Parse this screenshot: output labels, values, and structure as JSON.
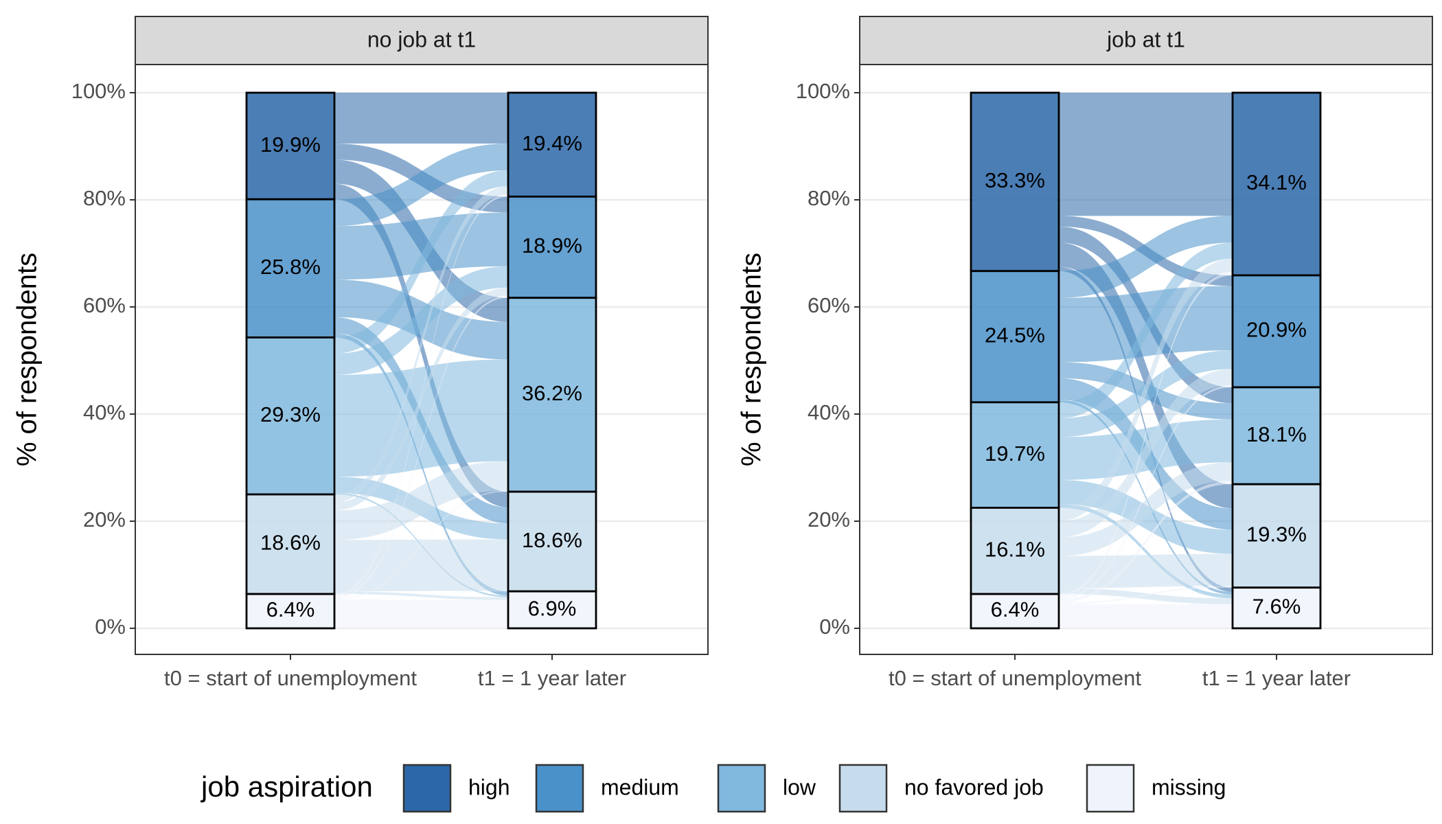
{
  "chart_data": [
    {
      "type": "alluvial",
      "title": "no job at t1",
      "ylabel": "% of respondents",
      "x": [
        "t0 = start of unemployment",
        "t1 = 1 year later"
      ],
      "strata": [
        [
          19.9,
          25.8,
          29.3,
          18.6,
          6.4
        ],
        [
          19.4,
          18.9,
          36.2,
          18.6,
          6.9
        ]
      ],
      "value_labels": [
        [
          "19.9%",
          "25.8%",
          "29.3%",
          "18.6%",
          "6.4%"
        ],
        [
          "19.4%",
          "18.9%",
          "36.2%",
          "18.6%",
          "6.9%"
        ]
      ],
      "flows": [
        [
          9.5,
          3,
          4.5,
          2.9,
          0
        ],
        [
          5,
          10,
          7,
          3,
          0.8
        ],
        [
          3,
          4,
          19,
          3,
          0.3
        ],
        [
          1.5,
          1.5,
          5.5,
          9.6,
          0.5
        ],
        [
          0.4,
          0.4,
          0.2,
          0.1,
          5.3
        ]
      ],
      "ylim": [
        0,
        100
      ],
      "yticks": [
        {
          "value": 0,
          "label": "0%"
        },
        {
          "value": 20,
          "label": "20%"
        },
        {
          "value": 40,
          "label": "40%"
        },
        {
          "value": 60,
          "label": "60%"
        },
        {
          "value": 80,
          "label": "80%"
        },
        {
          "value": 100,
          "label": "100%"
        }
      ],
      "grid": true
    },
    {
      "type": "alluvial",
      "title": "job at t1",
      "ylabel": "% of respondents",
      "x": [
        "t0 = start of unemployment",
        "t1 = 1 year later"
      ],
      "strata": [
        [
          33.3,
          24.5,
          19.7,
          16.1,
          6.4
        ],
        [
          34.1,
          20.9,
          18.1,
          19.3,
          7.6
        ]
      ],
      "value_labels": [
        [
          "33.3%",
          "24.5%",
          "19.7%",
          "16.1%",
          "6.4%"
        ],
        [
          "34.1%",
          "20.9%",
          "18.1%",
          "19.3%",
          "7.6%"
        ]
      ],
      "flows": [
        [
          23,
          2,
          3,
          4.5,
          0.8
        ],
        [
          5,
          12,
          3,
          4,
          0.5
        ],
        [
          3,
          3.5,
          8,
          4.5,
          0.7
        ],
        [
          2.5,
          3,
          3.5,
          6,
          1.1
        ],
        [
          0.6,
          0.4,
          0.6,
          0.3,
          4.5
        ]
      ],
      "ylim": [
        0,
        100
      ],
      "yticks": [
        {
          "value": 0,
          "label": "0%"
        },
        {
          "value": 20,
          "label": "20%"
        },
        {
          "value": 40,
          "label": "40%"
        },
        {
          "value": 60,
          "label": "60%"
        },
        {
          "value": 80,
          "label": "80%"
        },
        {
          "value": 100,
          "label": "100%"
        }
      ],
      "grid": true
    }
  ],
  "legend": {
    "title": "job aspiration",
    "items": [
      {
        "name": "high",
        "color": "#2c67a8"
      },
      {
        "name": "medium",
        "color": "#4a91c9"
      },
      {
        "name": "low",
        "color": "#80b8de"
      },
      {
        "name": "no favored job",
        "color": "#c6dcec"
      },
      {
        "name": "missing",
        "color": "#eff3fc"
      }
    ]
  }
}
